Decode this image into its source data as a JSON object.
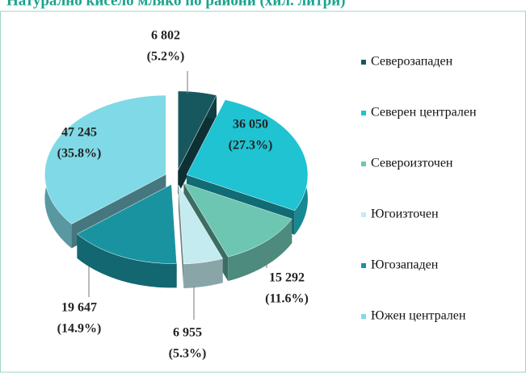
{
  "chart_data": {
    "type": "pie",
    "title": "Натурално кисело мляко по райони (хил. литри)",
    "categories": [
      "Северозападен",
      "Северен централен",
      "Североизточен",
      "Югоизточен",
      "Югозападен",
      "Южен централен"
    ],
    "values": [
      6802,
      36050,
      15292,
      6955,
      19647,
      47245
    ],
    "value_labels": [
      "6 802",
      "36 050",
      "15 292",
      "6 955",
      "19 647",
      "47 245"
    ],
    "percents": [
      5.2,
      27.3,
      11.6,
      5.3,
      14.9,
      35.8
    ],
    "percent_labels": [
      "(5.2%)",
      "(27.3%)",
      "(11.6%)",
      "(5.3%)",
      "(14.9%)",
      "(35.8%)"
    ],
    "colors": [
      "#17585e",
      "#1fc3d2",
      "#6cc6b2",
      "#c4ebf0",
      "#1a93a0",
      "#80d9e6"
    ],
    "legend": "right"
  }
}
